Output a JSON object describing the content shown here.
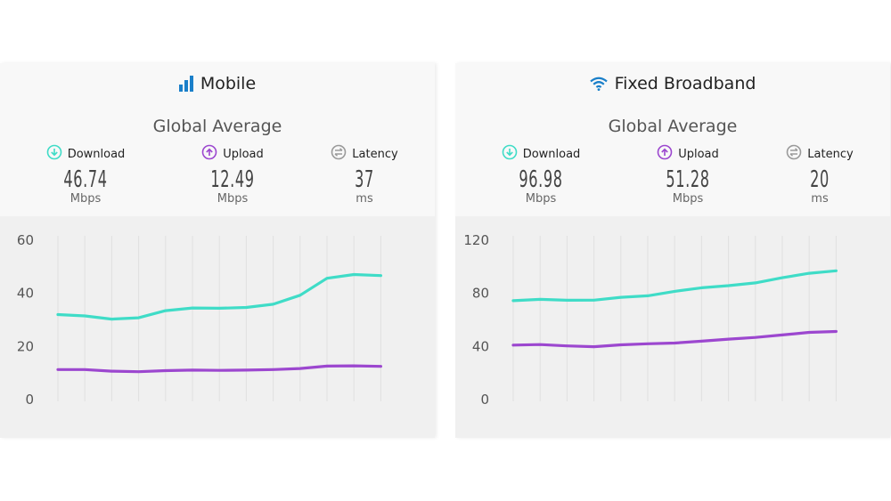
{
  "colors": {
    "download": "#3fdcc7",
    "upload": "#9c47cf",
    "latency": "#9a9a9a",
    "title_icon": "#1a7fc9",
    "grid": "#e0e0e0"
  },
  "panels": [
    {
      "id": "mobile",
      "title": "Mobile",
      "icon": "signal-bars-icon",
      "subtitle": "Global Average",
      "metrics": [
        {
          "label": "Download",
          "value": "46.74",
          "unit": "Mbps",
          "icon": "download-arrow-icon"
        },
        {
          "label": "Upload",
          "value": "12.49",
          "unit": "Mbps",
          "icon": "upload-arrow-icon"
        },
        {
          "label": "Latency",
          "value": "37",
          "unit": "ms",
          "icon": "latency-arrows-icon"
        }
      ]
    },
    {
      "id": "fixed",
      "title": "Fixed Broadband",
      "icon": "wifi-icon",
      "subtitle": "Global Average",
      "metrics": [
        {
          "label": "Download",
          "value": "96.98",
          "unit": "Mbps",
          "icon": "download-arrow-icon"
        },
        {
          "label": "Upload",
          "value": "51.28",
          "unit": "Mbps",
          "icon": "upload-arrow-icon"
        },
        {
          "label": "Latency",
          "value": "20",
          "unit": "ms",
          "icon": "latency-arrows-icon"
        }
      ]
    }
  ],
  "chart_data": [
    {
      "type": "line",
      "title": "Mobile",
      "xlabel": "",
      "ylabel": "",
      "ylim": [
        0,
        60
      ],
      "yticks": [
        0,
        20,
        40,
        60
      ],
      "grid": true,
      "x": [
        1,
        2,
        3,
        4,
        5,
        6,
        7,
        8,
        9,
        10,
        11,
        12,
        13
      ],
      "series": [
        {
          "name": "Download",
          "color": "#3fdcc7",
          "values": [
            32.0,
            31.5,
            30.3,
            30.8,
            33.5,
            34.5,
            34.4,
            34.7,
            35.9,
            39.3,
            45.7,
            47.1,
            46.7
          ]
        },
        {
          "name": "Upload",
          "color": "#9c47cf",
          "values": [
            11.3,
            11.3,
            10.7,
            10.5,
            10.9,
            11.1,
            11.0,
            11.1,
            11.3,
            11.7,
            12.6,
            12.7,
            12.5
          ]
        }
      ]
    },
    {
      "type": "line",
      "title": "Fixed Broadband",
      "xlabel": "",
      "ylabel": "",
      "ylim": [
        0,
        120
      ],
      "yticks": [
        0,
        40,
        80,
        120
      ],
      "grid": true,
      "x": [
        1,
        2,
        3,
        4,
        5,
        6,
        7,
        8,
        9,
        10,
        11,
        12,
        13
      ],
      "series": [
        {
          "name": "Download",
          "color": "#3fdcc7",
          "values": [
            74.5,
            75.5,
            74.8,
            74.9,
            77.0,
            78.2,
            81.5,
            84.2,
            85.8,
            87.9,
            91.8,
            95.1,
            97.0
          ]
        },
        {
          "name": "Upload",
          "color": "#9c47cf",
          "values": [
            41.0,
            41.4,
            40.4,
            39.8,
            41.2,
            42.0,
            42.6,
            44.0,
            45.5,
            46.8,
            48.7,
            50.6,
            51.3
          ]
        }
      ]
    }
  ]
}
